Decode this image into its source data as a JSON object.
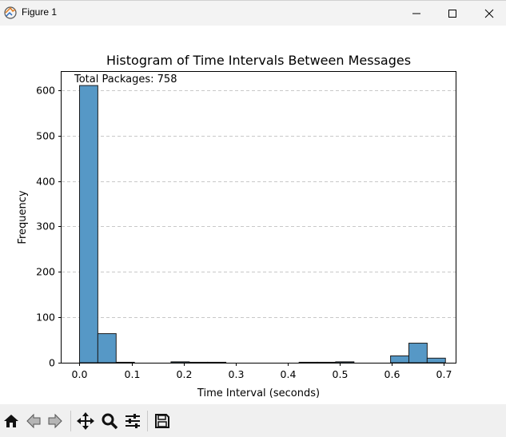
{
  "window": {
    "title": "Figure 1"
  },
  "toolbar": {
    "items": [
      "home-icon",
      "back-icon",
      "forward-icon",
      "pan-icon",
      "zoom-icon",
      "configure-subplots-icon",
      "save-icon"
    ]
  },
  "chart_data": {
    "type": "bar",
    "title": "Histogram of Time Intervals Between Messages",
    "xlabel": "Time Interval (seconds)",
    "ylabel": "Frequency",
    "annotation": "Total Packages: 758",
    "xlim": [
      -0.0346,
      0.7236
    ],
    "ylim": [
      0,
      640
    ],
    "xticks": [
      0.0,
      0.1,
      0.2,
      0.3,
      0.4,
      0.5,
      0.6,
      0.7
    ],
    "xtick_labels": [
      "0.0",
      "0.1",
      "0.2",
      "0.3",
      "0.4",
      "0.5",
      "0.6",
      "0.7"
    ],
    "yticks": [
      0,
      100,
      200,
      300,
      400,
      500,
      600
    ],
    "ytick_labels": [
      "0",
      "100",
      "200",
      "300",
      "400",
      "500",
      "600"
    ],
    "grid": "y-dashed",
    "bar_color": "#5698c6",
    "bin_edges": [
      0.0,
      0.0352,
      0.0704,
      0.1056,
      0.1408,
      0.176,
      0.2112,
      0.2464,
      0.2816,
      0.3168,
      0.352,
      0.3872,
      0.4224,
      0.4576,
      0.4928,
      0.528,
      0.5632,
      0.5984,
      0.6336,
      0.6688,
      0.704
    ],
    "values": [
      610,
      64,
      1,
      0,
      0,
      2,
      1,
      1,
      0,
      0,
      0,
      0,
      1,
      1,
      2,
      0,
      0,
      15,
      43,
      10
    ]
  }
}
